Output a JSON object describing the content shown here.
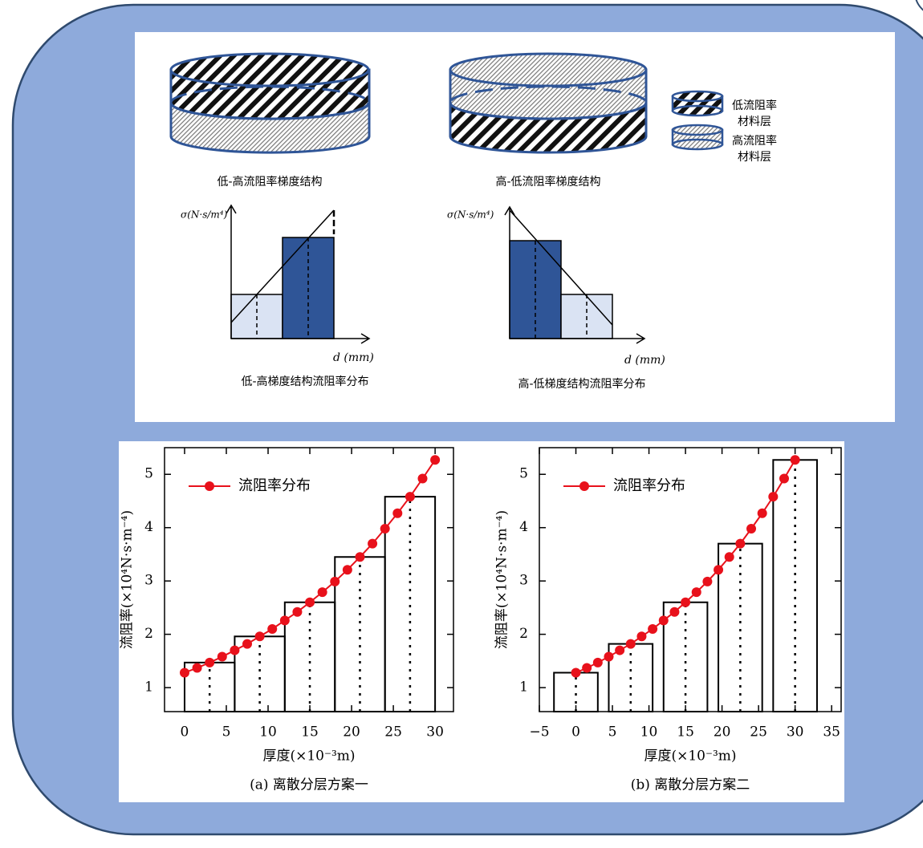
{
  "diagram": {
    "cylinder_captions": [
      "低-高流阻率梯度结构",
      "高-低流阻率梯度结构"
    ],
    "legend": [
      [
        "低流阻率",
        "材料层"
      ],
      [
        "高流阻率",
        "材料层"
      ]
    ],
    "sigma_label": "σ(N·s/m⁴)",
    "d_label": "d (mm)",
    "schematic_captions": [
      "低-高梯度结构流阻率分布",
      "高-低梯度结构流阻率分布"
    ]
  },
  "chart_data": [
    {
      "type": "line",
      "caption": "(a) 离散分层方案一",
      "xlabel": "厚度(×10⁻³m)",
      "ylabel": "流阻率(×10⁴N·s·m⁻⁴)",
      "x": [
        0,
        1.5,
        3,
        4.5,
        6,
        7.5,
        9,
        10.5,
        12,
        13.5,
        15,
        16.5,
        18,
        19.5,
        21,
        22.5,
        24,
        25.5,
        27,
        28.5,
        30
      ],
      "series": [
        {
          "name": "流阻率分布",
          "color": "#e8111b",
          "values": [
            1.28,
            1.37,
            1.47,
            1.58,
            1.7,
            1.82,
            1.96,
            2.1,
            2.26,
            2.42,
            2.6,
            2.79,
            2.99,
            3.21,
            3.45,
            3.7,
            3.98,
            4.27,
            4.58,
            4.92,
            5.27
          ]
        }
      ],
      "bars": {
        "x": [
          3,
          9,
          15,
          21,
          27
        ],
        "width": 6,
        "values": [
          1.47,
          1.96,
          2.6,
          3.45,
          4.58
        ]
      },
      "xlim": [
        -2.4,
        32.2
      ],
      "ylim": [
        0.55,
        5.5
      ],
      "xticks": [
        0,
        5,
        10,
        15,
        20,
        25,
        30
      ],
      "yticks": [
        1,
        2,
        3,
        4,
        5
      ],
      "legend": "upper left",
      "grid": false
    },
    {
      "type": "line",
      "caption": "(b) 离散分层方案二",
      "xlabel": "厚度(×10⁻³m)",
      "ylabel": "流阻率(×10⁴N·s·m⁻⁴)",
      "x": [
        0,
        1.5,
        3,
        4.5,
        6,
        7.5,
        9,
        10.5,
        12,
        13.5,
        15,
        16.5,
        18,
        19.5,
        21,
        22.5,
        24,
        25.5,
        27,
        28.5,
        30
      ],
      "series": [
        {
          "name": "流阻率分布",
          "color": "#e8111b",
          "values": [
            1.28,
            1.37,
            1.47,
            1.58,
            1.7,
            1.82,
            1.96,
            2.1,
            2.26,
            2.42,
            2.6,
            2.79,
            2.99,
            3.21,
            3.45,
            3.7,
            3.98,
            4.27,
            4.58,
            4.92,
            5.27
          ]
        }
      ],
      "bars": {
        "x": [
          0,
          7.5,
          15,
          22.5,
          30
        ],
        "width": 6,
        "values": [
          1.28,
          1.82,
          2.6,
          3.7,
          5.27
        ]
      },
      "xlim": [
        -5,
        36.3
      ],
      "ylim": [
        0.55,
        5.5
      ],
      "xticks": [
        {
          "value": -5,
          "label": "−5"
        },
        0,
        5,
        10,
        15,
        20,
        25,
        30,
        35
      ],
      "yticks": [
        1,
        2,
        3,
        4,
        5
      ],
      "legend": "upper left",
      "grid": false
    }
  ]
}
